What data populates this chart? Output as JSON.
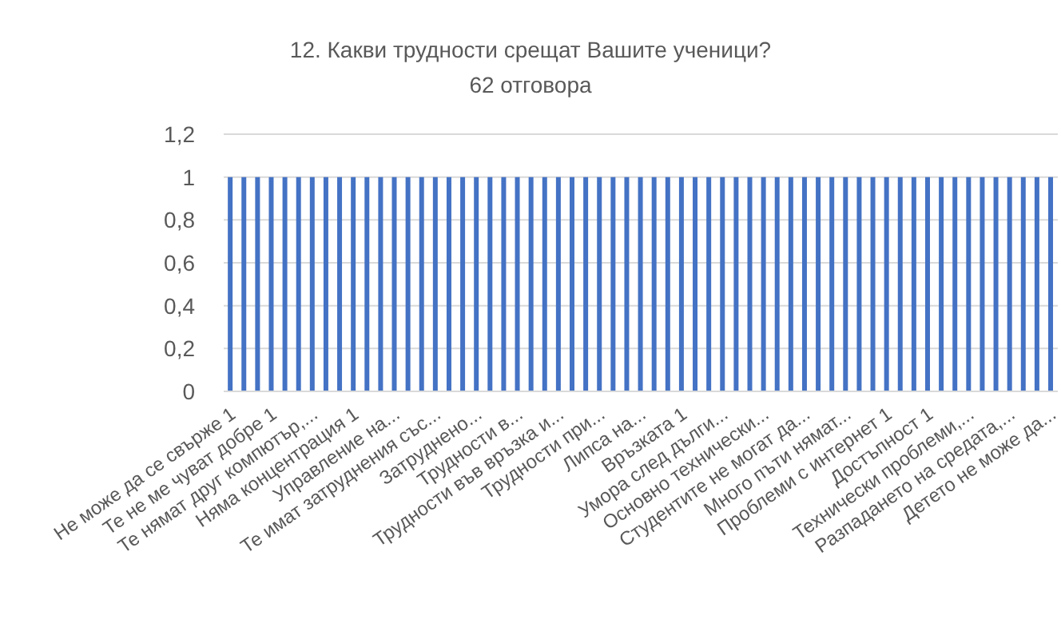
{
  "chart_data": {
    "type": "bar",
    "title": "12. Какви трудности срещат Вашите ученици?",
    "subtitle": "62 отговора",
    "categories": [
      "Не може да се свърже 1",
      null,
      null,
      "Те не ме чуват добре 1",
      null,
      null,
      "Те нямат друг компютър,...",
      null,
      null,
      "Няма концентрация 1",
      null,
      null,
      "Управление на...",
      null,
      null,
      "Те имат затруднения със...",
      null,
      null,
      "Затруднено...",
      null,
      null,
      "Трудности в...",
      null,
      null,
      "Трудности във връзка и...",
      null,
      null,
      "Трудности при...",
      null,
      null,
      "Липса на...",
      null,
      null,
      "Връзката 1",
      null,
      null,
      "Умора след дълги...",
      null,
      null,
      "Основно технически...",
      null,
      null,
      "Студентите не могат да...",
      null,
      null,
      "Много пъти нямат...",
      null,
      null,
      "Проблеми с интернет 1",
      null,
      null,
      "Достъпност 1",
      null,
      null,
      "Технически проблеми,...",
      null,
      null,
      "Разпадането на средата,...",
      null,
      null,
      "Детето не може да..."
    ],
    "values": [
      1,
      1,
      1,
      1,
      1,
      1,
      1,
      1,
      1,
      1,
      1,
      1,
      1,
      1,
      1,
      1,
      1,
      1,
      1,
      1,
      1,
      1,
      1,
      1,
      1,
      1,
      1,
      1,
      1,
      1,
      1,
      1,
      1,
      1,
      1,
      1,
      1,
      1,
      1,
      1,
      1,
      1,
      1,
      1,
      1,
      1,
      1,
      1,
      1,
      1,
      1,
      1,
      1,
      1,
      1,
      1,
      1,
      1,
      1,
      1,
      1
    ],
    "color": "#4472c4",
    "ylim": [
      0,
      1.2
    ],
    "yticks": [
      {
        "value": 0,
        "label": "0"
      },
      {
        "value": 0.2,
        "label": "0,2"
      },
      {
        "value": 0.4,
        "label": "0,4"
      },
      {
        "value": 0.6,
        "label": "0,6"
      },
      {
        "value": 0.8,
        "label": "0,8"
      },
      {
        "value": 1,
        "label": "1"
      },
      {
        "value": 1.2,
        "label": "1,2"
      }
    ],
    "grid": "y"
  }
}
